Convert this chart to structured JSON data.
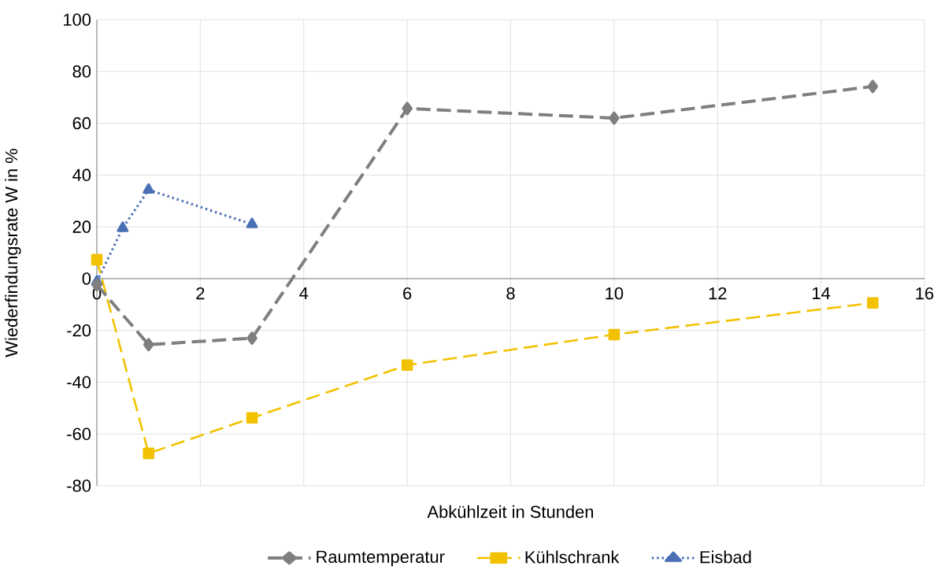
{
  "chart_data": {
    "type": "line",
    "xlabel": "Abkühlzeit in Stunden",
    "ylabel": "Wiederfindungsrate W in %",
    "xlim": [
      0,
      16
    ],
    "xticks": [
      0,
      2,
      4,
      6,
      8,
      10,
      12,
      14,
      16
    ],
    "ylim": [
      -80,
      100
    ],
    "yticks": [
      -80,
      -60,
      -40,
      -20,
      0,
      20,
      40,
      60,
      80,
      100
    ],
    "grid": true,
    "legend": "bottom",
    "series": [
      {
        "name": "Raumtemperatur",
        "color": "#7f7f7f",
        "marker": "diamond",
        "line_style": "dashed",
        "x": [
          0,
          1,
          3,
          6,
          10,
          15
        ],
        "values": [
          -2.4,
          -25.5,
          -23,
          65.7,
          62,
          74.2
        ]
      },
      {
        "name": "Kühlschrank",
        "color": "#f2c200",
        "marker": "square",
        "line_style": "dashed",
        "x": [
          0,
          1,
          3,
          6,
          10,
          15
        ],
        "values": [
          7.3,
          -67.5,
          -53.8,
          -33.4,
          -21.6,
          -9.4
        ]
      },
      {
        "name": "Eisbad",
        "color": "#4a6fb5",
        "marker": "triangle",
        "line_style": "dotted",
        "x": [
          0,
          0.5,
          1,
          3
        ],
        "values": [
          -1.2,
          19.5,
          34.3,
          21
        ]
      }
    ]
  }
}
